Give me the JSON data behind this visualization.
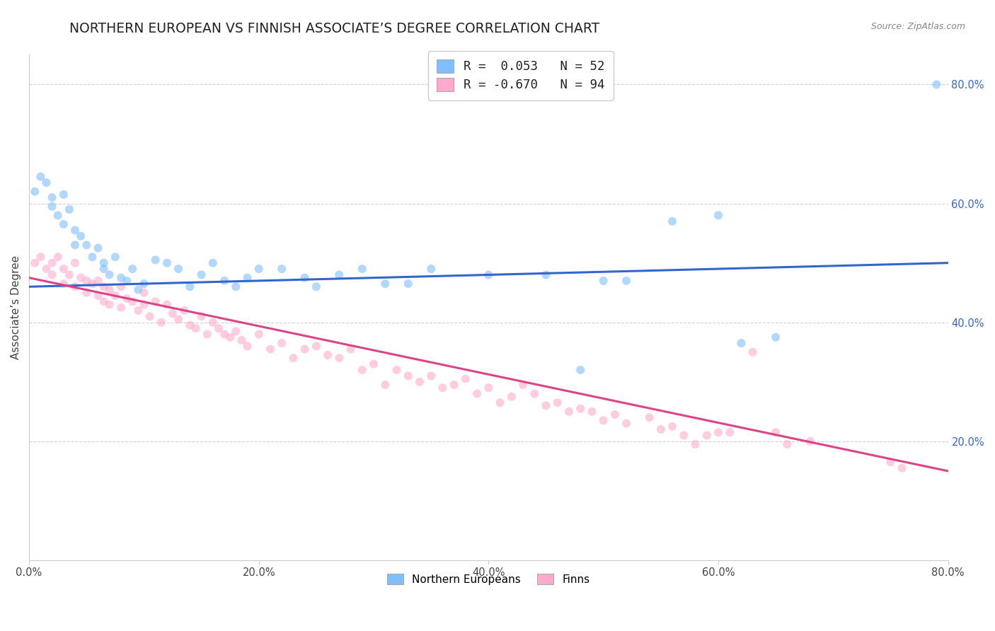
{
  "title": "NORTHERN EUROPEAN VS FINNISH ASSOCIATE’S DEGREE CORRELATION CHART",
  "source": "Source: ZipAtlas.com",
  "ylabel": "Associate’s Degree",
  "legend_blue_r": "R =  0.053",
  "legend_blue_n": "N = 52",
  "legend_pink_r": "R = -0.670",
  "legend_pink_n": "N = 94",
  "legend_label_blue": "Northern Europeans",
  "legend_label_pink": "Finns",
  "xlim": [
    0.0,
    0.8
  ],
  "ylim": [
    0.0,
    0.85
  ],
  "ytick_labels": [
    "20.0%",
    "40.0%",
    "60.0%",
    "80.0%"
  ],
  "ytick_values": [
    0.2,
    0.4,
    0.6,
    0.8
  ],
  "xtick_labels": [
    "0.0%",
    "20.0%",
    "40.0%",
    "60.0%",
    "80.0%"
  ],
  "xtick_values": [
    0.0,
    0.2,
    0.4,
    0.6,
    0.8
  ],
  "blue_scatter_x": [
    0.005,
    0.01,
    0.015,
    0.02,
    0.02,
    0.025,
    0.03,
    0.03,
    0.035,
    0.04,
    0.04,
    0.045,
    0.05,
    0.055,
    0.06,
    0.065,
    0.065,
    0.07,
    0.075,
    0.08,
    0.085,
    0.09,
    0.095,
    0.1,
    0.11,
    0.12,
    0.13,
    0.14,
    0.15,
    0.16,
    0.17,
    0.18,
    0.19,
    0.2,
    0.22,
    0.24,
    0.25,
    0.27,
    0.29,
    0.31,
    0.33,
    0.35,
    0.4,
    0.45,
    0.48,
    0.5,
    0.52,
    0.56,
    0.6,
    0.62,
    0.65,
    0.79
  ],
  "blue_scatter_y": [
    0.62,
    0.645,
    0.635,
    0.61,
    0.595,
    0.58,
    0.615,
    0.565,
    0.59,
    0.555,
    0.53,
    0.545,
    0.53,
    0.51,
    0.525,
    0.5,
    0.49,
    0.48,
    0.51,
    0.475,
    0.47,
    0.49,
    0.455,
    0.465,
    0.505,
    0.5,
    0.49,
    0.46,
    0.48,
    0.5,
    0.47,
    0.46,
    0.475,
    0.49,
    0.49,
    0.475,
    0.46,
    0.48,
    0.49,
    0.465,
    0.465,
    0.49,
    0.48,
    0.48,
    0.32,
    0.47,
    0.47,
    0.57,
    0.58,
    0.365,
    0.375,
    0.8
  ],
  "pink_scatter_x": [
    0.005,
    0.01,
    0.015,
    0.02,
    0.02,
    0.025,
    0.03,
    0.03,
    0.035,
    0.04,
    0.04,
    0.045,
    0.05,
    0.05,
    0.055,
    0.06,
    0.06,
    0.065,
    0.065,
    0.07,
    0.07,
    0.075,
    0.08,
    0.08,
    0.085,
    0.09,
    0.095,
    0.1,
    0.1,
    0.105,
    0.11,
    0.115,
    0.12,
    0.125,
    0.13,
    0.135,
    0.14,
    0.145,
    0.15,
    0.155,
    0.16,
    0.165,
    0.17,
    0.175,
    0.18,
    0.185,
    0.19,
    0.2,
    0.21,
    0.22,
    0.23,
    0.24,
    0.25,
    0.26,
    0.27,
    0.28,
    0.29,
    0.3,
    0.31,
    0.32,
    0.33,
    0.34,
    0.35,
    0.36,
    0.37,
    0.38,
    0.39,
    0.4,
    0.41,
    0.42,
    0.43,
    0.44,
    0.45,
    0.46,
    0.47,
    0.48,
    0.49,
    0.5,
    0.51,
    0.52,
    0.54,
    0.55,
    0.56,
    0.57,
    0.58,
    0.59,
    0.6,
    0.61,
    0.63,
    0.65,
    0.66,
    0.68,
    0.75,
    0.76
  ],
  "pink_scatter_y": [
    0.5,
    0.51,
    0.49,
    0.5,
    0.48,
    0.51,
    0.49,
    0.465,
    0.48,
    0.5,
    0.46,
    0.475,
    0.47,
    0.45,
    0.465,
    0.47,
    0.445,
    0.46,
    0.435,
    0.455,
    0.43,
    0.445,
    0.46,
    0.425,
    0.44,
    0.435,
    0.42,
    0.45,
    0.43,
    0.41,
    0.435,
    0.4,
    0.43,
    0.415,
    0.405,
    0.42,
    0.395,
    0.39,
    0.41,
    0.38,
    0.4,
    0.39,
    0.38,
    0.375,
    0.385,
    0.37,
    0.36,
    0.38,
    0.355,
    0.365,
    0.34,
    0.355,
    0.36,
    0.345,
    0.34,
    0.355,
    0.32,
    0.33,
    0.295,
    0.32,
    0.31,
    0.3,
    0.31,
    0.29,
    0.295,
    0.305,
    0.28,
    0.29,
    0.265,
    0.275,
    0.295,
    0.28,
    0.26,
    0.265,
    0.25,
    0.255,
    0.25,
    0.235,
    0.245,
    0.23,
    0.24,
    0.22,
    0.225,
    0.21,
    0.195,
    0.21,
    0.215,
    0.215,
    0.35,
    0.215,
    0.195,
    0.2,
    0.165,
    0.155
  ],
  "blue_line_x": [
    0.0,
    0.8
  ],
  "blue_line_y": [
    0.46,
    0.5
  ],
  "pink_line_x": [
    0.0,
    0.8
  ],
  "pink_line_y": [
    0.475,
    0.15
  ],
  "background_color": "#ffffff",
  "grid_color": "#d0d0d0",
  "blue_color": "#7fbfff",
  "pink_color": "#ffaacc",
  "blue_line_color": "#3366cc",
  "pink_line_color": "#dd4488",
  "marker_size": 75,
  "marker_alpha": 0.6,
  "title_fontsize": 13.5,
  "axis_label_fontsize": 11,
  "tick_fontsize": 10.5
}
